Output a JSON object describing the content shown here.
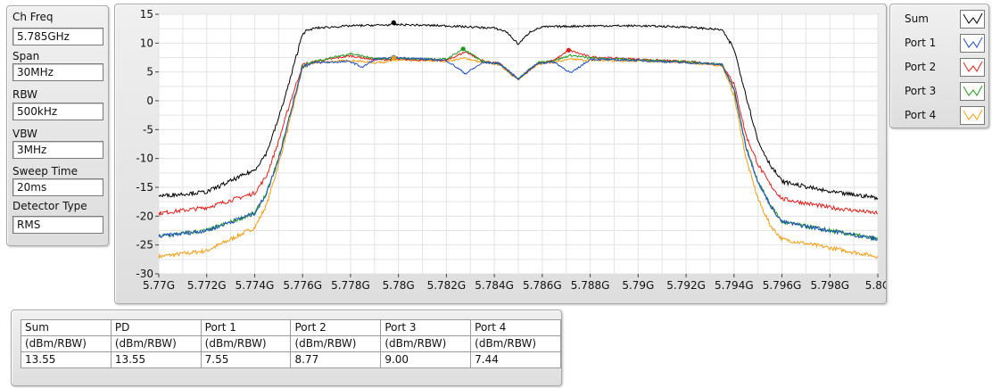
{
  "settings": [
    {
      "label": "Ch Freq",
      "value": "5.785GHz"
    },
    {
      "label": "Span",
      "value": "30MHz"
    },
    {
      "label": "RBW",
      "value": "500kHz"
    },
    {
      "label": "VBW",
      "value": "3MHz"
    },
    {
      "label": "Sweep Time",
      "value": "20ms"
    },
    {
      "label": "Detector Type",
      "value": "RMS"
    }
  ],
  "legend": [
    {
      "name": "Sum",
      "color": "#000000"
    },
    {
      "name": "Port 1",
      "color": "#1f4fbf"
    },
    {
      "name": "Port 2",
      "color": "#e0201c"
    },
    {
      "name": "Port 3",
      "color": "#1e9a1e"
    },
    {
      "name": "Port 4",
      "color": "#f39c12"
    }
  ],
  "table": {
    "headers": [
      "Sum",
      "PD",
      "Port 1",
      "Port 2",
      "Port 3",
      "Port 4"
    ],
    "units": [
      "(dBm/RBW)",
      "(dBm/RBW)",
      "(dBm/RBW)",
      "(dBm/RBW)",
      "(dBm/RBW)",
      "(dBm/RBW)"
    ],
    "values": [
      "13.55",
      "13.55",
      "7.55",
      "8.77",
      "9.00",
      "7.44"
    ]
  },
  "chart_data": {
    "type": "line",
    "xlim": [
      5.77,
      5.8
    ],
    "ylim": [
      -30,
      15
    ],
    "x_ticks": [
      5.77,
      5.772,
      5.774,
      5.776,
      5.778,
      5.78,
      5.782,
      5.784,
      5.786,
      5.788,
      5.79,
      5.792,
      5.794,
      5.796,
      5.798,
      5.8
    ],
    "x_tick_labels": [
      "5.77G",
      "5.772G",
      "5.774G",
      "5.776G",
      "5.778G",
      "5.78G",
      "5.782G",
      "5.784G",
      "5.786G",
      "5.788G",
      "5.79G",
      "5.792G",
      "5.794G",
      "5.796G",
      "5.798G",
      "5.8G"
    ],
    "y_ticks": [
      15,
      10,
      5,
      0,
      -5,
      -10,
      -15,
      -20,
      -25,
      -30
    ],
    "y_tick_labels": [
      "15",
      "10",
      "5",
      "0",
      "-5",
      "-10",
      "-15",
      "-20",
      "-25",
      "-30"
    ],
    "grid": true,
    "series": [
      {
        "name": "Sum",
        "color": "#000000",
        "x": [
          5.77,
          5.772,
          5.774,
          5.7745,
          5.775,
          5.7755,
          5.776,
          5.7765,
          5.778,
          5.78,
          5.782,
          5.784,
          5.7845,
          5.785,
          5.7855,
          5.786,
          5.788,
          5.79,
          5.792,
          5.7935,
          5.794,
          5.7945,
          5.795,
          5.7955,
          5.796,
          5.798,
          5.8
        ],
        "y": [
          -16.5,
          -15.8,
          -12,
          -9,
          -3,
          4,
          11.8,
          12.6,
          13,
          13.2,
          13,
          12.6,
          12,
          9.8,
          12,
          12.8,
          13,
          13,
          12.8,
          12.3,
          9,
          1,
          -7,
          -11,
          -14,
          -15.8,
          -16.8
        ]
      },
      {
        "name": "Port 1",
        "color": "#1f4fbf",
        "x": [
          5.77,
          5.772,
          5.774,
          5.7745,
          5.775,
          5.7755,
          5.776,
          5.7765,
          5.778,
          5.7785,
          5.779,
          5.78,
          5.782,
          5.7828,
          5.7835,
          5.7842,
          5.785,
          5.7858,
          5.7865,
          5.7872,
          5.788,
          5.79,
          5.792,
          5.7935,
          5.794,
          5.7945,
          5.795,
          5.7955,
          5.796,
          5.798,
          5.8
        ],
        "y": [
          -23.5,
          -22.5,
          -19.5,
          -16,
          -10,
          -2,
          6,
          6.6,
          6.8,
          5.8,
          7.2,
          7.5,
          7,
          4.7,
          6.6,
          6.5,
          3.8,
          6.5,
          6.7,
          4.8,
          7.2,
          7,
          6.6,
          6.3,
          2,
          -8,
          -14,
          -18,
          -21,
          -22.5,
          -24
        ]
      },
      {
        "name": "Port 2",
        "color": "#e0201c",
        "x": [
          5.77,
          5.772,
          5.774,
          5.7745,
          5.775,
          5.7755,
          5.776,
          5.7765,
          5.778,
          5.779,
          5.78,
          5.782,
          5.7828,
          5.7836,
          5.7842,
          5.785,
          5.7858,
          5.7865,
          5.7871,
          5.788,
          5.79,
          5.792,
          5.7935,
          5.794,
          5.7945,
          5.795,
          5.7955,
          5.796,
          5.798,
          5.8
        ],
        "y": [
          -19.5,
          -18.5,
          -16,
          -13,
          -7,
          0,
          6.2,
          6.8,
          7.8,
          7.1,
          7.2,
          7,
          8.5,
          6.8,
          6.5,
          3.7,
          6.5,
          7,
          8.8,
          7.6,
          7.2,
          6.8,
          6.3,
          3,
          -6,
          -11,
          -14.5,
          -17,
          -18.5,
          -19.5
        ]
      },
      {
        "name": "Port 3",
        "color": "#1e9a1e",
        "x": [
          5.77,
          5.772,
          5.774,
          5.7745,
          5.775,
          5.7755,
          5.776,
          5.7765,
          5.778,
          5.779,
          5.78,
          5.782,
          5.7827,
          5.7835,
          5.7842,
          5.785,
          5.7858,
          5.7865,
          5.7872,
          5.788,
          5.79,
          5.792,
          5.7935,
          5.794,
          5.7945,
          5.795,
          5.7955,
          5.796,
          5.798,
          5.8
        ],
        "y": [
          -23.5,
          -22.5,
          -19.5,
          -16,
          -10,
          -2,
          6,
          6.8,
          8.2,
          7.3,
          7.3,
          7.2,
          9,
          6.8,
          6.5,
          3.8,
          6.6,
          7,
          7.9,
          7.4,
          7.1,
          6.8,
          6.3,
          2,
          -8,
          -14,
          -18,
          -21,
          -22.5,
          -24
        ]
      },
      {
        "name": "Port 4",
        "color": "#f39c12",
        "x": [
          5.77,
          5.772,
          5.774,
          5.7745,
          5.775,
          5.7755,
          5.776,
          5.7765,
          5.778,
          5.779,
          5.78,
          5.782,
          5.7828,
          5.7835,
          5.7842,
          5.785,
          5.7858,
          5.7865,
          5.7872,
          5.788,
          5.79,
          5.792,
          5.7935,
          5.794,
          5.7945,
          5.795,
          5.7955,
          5.796,
          5.798,
          5.8
        ],
        "y": [
          -27,
          -26,
          -22,
          -18,
          -11,
          -3,
          5.8,
          6.6,
          7,
          6.6,
          7,
          6.9,
          7.4,
          6.6,
          6.3,
          3.6,
          6.4,
          6.7,
          7.2,
          7,
          6.9,
          6.6,
          6.1,
          1,
          -10,
          -17,
          -21.5,
          -24,
          -25.5,
          -27
        ]
      }
    ],
    "markers": [
      {
        "series": "Sum",
        "x": 5.7798,
        "y": 13.55
      },
      {
        "series": "Port 1",
        "x": 5.7798,
        "y": 7.55
      },
      {
        "series": "Port 2",
        "x": 5.7871,
        "y": 8.77
      },
      {
        "series": "Port 3",
        "x": 5.7827,
        "y": 9.0
      },
      {
        "series": "Port 4",
        "x": 5.7798,
        "y": 7.44
      }
    ]
  }
}
